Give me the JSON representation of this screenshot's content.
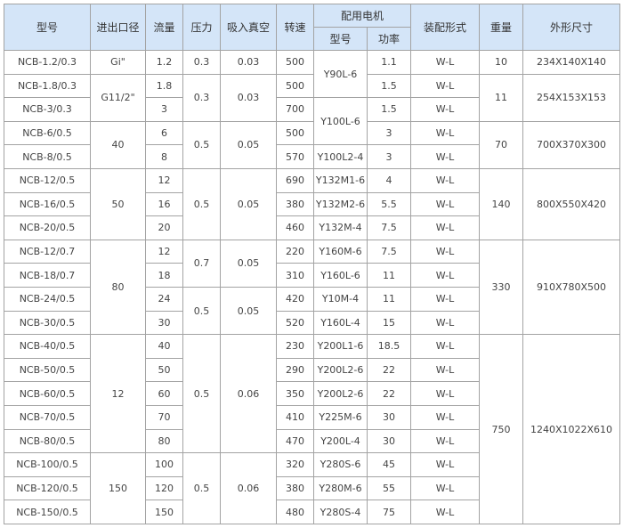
{
  "colors": {
    "header_bg": "#d4e5f8",
    "border": "#a3a3a3",
    "text": "#444444"
  },
  "header": {
    "model": "型号",
    "port": "进出口径",
    "flow": "流量",
    "pressure": "压力",
    "vacuum": "吸入真空",
    "speed": "转速",
    "motor": "配用电机",
    "motor_model": "型号",
    "motor_power": "功率",
    "assembly": "装配形式",
    "weight": "重量",
    "dimensions": "外形尺寸"
  },
  "rows": [
    [
      {
        "t": "NCB-1.2/0.3"
      },
      {
        "t": "Gi\""
      },
      {
        "t": "1.2"
      },
      {
        "t": "0.3"
      },
      {
        "t": "0.03"
      },
      {
        "t": "500"
      },
      {
        "t": "Y90L-6",
        "rs": 2
      },
      {
        "t": "1.1"
      },
      {
        "t": "W-L"
      },
      {
        "t": "10"
      },
      {
        "t": "234X140X140"
      }
    ],
    [
      {
        "t": "NCB-1.8/0.3"
      },
      {
        "t": "G11/2\"",
        "rs": 2
      },
      {
        "t": "1.8"
      },
      {
        "t": "0.3",
        "rs": 2
      },
      {
        "t": "0.03",
        "rs": 2
      },
      {
        "t": "500"
      },
      {
        "t": "1.5"
      },
      {
        "t": "W-L"
      },
      {
        "t": "11",
        "rs": 2
      },
      {
        "t": "254X153X153",
        "rs": 2
      }
    ],
    [
      {
        "t": "NCB-3/0.3"
      },
      {
        "t": "3"
      },
      {
        "t": "700"
      },
      {
        "t": "Y100L-6",
        "rs": 2
      },
      {
        "t": "1.5"
      },
      {
        "t": "W-L"
      }
    ],
    [
      {
        "t": "NCB-6/0.5"
      },
      {
        "t": "40",
        "rs": 2
      },
      {
        "t": "6"
      },
      {
        "t": "0.5",
        "rs": 2
      },
      {
        "t": "0.05",
        "rs": 2
      },
      {
        "t": "500"
      },
      {
        "t": "3"
      },
      {
        "t": "W-L"
      },
      {
        "t": "70",
        "rs": 2
      },
      {
        "t": "700X370X300",
        "rs": 2
      }
    ],
    [
      {
        "t": "NCB-8/0.5"
      },
      {
        "t": "8"
      },
      {
        "t": "570"
      },
      {
        "t": "Y100L2-4"
      },
      {
        "t": "3"
      },
      {
        "t": "W-L"
      }
    ],
    [
      {
        "t": "NCB-12/0.5"
      },
      {
        "t": "50",
        "rs": 3
      },
      {
        "t": "12"
      },
      {
        "t": "0.5",
        "rs": 3
      },
      {
        "t": "0.05",
        "rs": 3
      },
      {
        "t": "690"
      },
      {
        "t": "Y132M1-6"
      },
      {
        "t": "4"
      },
      {
        "t": "W-L"
      },
      {
        "t": "140",
        "rs": 3
      },
      {
        "t": "800X550X420",
        "rs": 3
      }
    ],
    [
      {
        "t": "NCB-16/0.5"
      },
      {
        "t": "16"
      },
      {
        "t": "380"
      },
      {
        "t": "Y132M2-6"
      },
      {
        "t": "5.5"
      },
      {
        "t": "W-L"
      }
    ],
    [
      {
        "t": "NCB-20/0.5"
      },
      {
        "t": "20"
      },
      {
        "t": "460"
      },
      {
        "t": "Y132M-4"
      },
      {
        "t": "7.5"
      },
      {
        "t": "W-L"
      }
    ],
    [
      {
        "t": "NCB-12/0.7"
      },
      {
        "t": "80",
        "rs": 4
      },
      {
        "t": "12"
      },
      {
        "t": "0.7",
        "rs": 2
      },
      {
        "t": "0.05",
        "rs": 2
      },
      {
        "t": "220"
      },
      {
        "t": "Y160M-6"
      },
      {
        "t": "7.5"
      },
      {
        "t": "W-L"
      },
      {
        "t": "330",
        "rs": 4
      },
      {
        "t": "910X780X500",
        "rs": 4
      }
    ],
    [
      {
        "t": "NCB-18/0.7"
      },
      {
        "t": "18"
      },
      {
        "t": "310"
      },
      {
        "t": "Y160L-6"
      },
      {
        "t": "11"
      },
      {
        "t": "W-L"
      }
    ],
    [
      {
        "t": "NCB-24/0.5"
      },
      {
        "t": "24"
      },
      {
        "t": "0.5",
        "rs": 2
      },
      {
        "t": "0.05",
        "rs": 2
      },
      {
        "t": "420"
      },
      {
        "t": "Y10M-4"
      },
      {
        "t": "11"
      },
      {
        "t": "W-L"
      }
    ],
    [
      {
        "t": "NCB-30/0.5"
      },
      {
        "t": "30"
      },
      {
        "t": "520"
      },
      {
        "t": "Y160L-4"
      },
      {
        "t": "15"
      },
      {
        "t": "W-L"
      }
    ],
    [
      {
        "t": "NCB-40/0.5"
      },
      {
        "t": "12",
        "rs": 5
      },
      {
        "t": "40"
      },
      {
        "t": "0.5",
        "rs": 5
      },
      {
        "t": "0.06",
        "rs": 5
      },
      {
        "t": "230"
      },
      {
        "t": "Y200L1-6"
      },
      {
        "t": "18.5"
      },
      {
        "t": "W-L"
      },
      {
        "t": "750",
        "rs": 8
      },
      {
        "t": "1240X1022X610",
        "rs": 8
      }
    ],
    [
      {
        "t": "NCB-50/0.5"
      },
      {
        "t": "50"
      },
      {
        "t": "290"
      },
      {
        "t": "Y200L2-6"
      },
      {
        "t": "22"
      },
      {
        "t": "W-L"
      }
    ],
    [
      {
        "t": "NCB-60/0.5"
      },
      {
        "t": "60"
      },
      {
        "t": "350"
      },
      {
        "t": "Y200L2-6"
      },
      {
        "t": "22"
      },
      {
        "t": "W-L"
      }
    ],
    [
      {
        "t": "NCB-70/0.5"
      },
      {
        "t": "70"
      },
      {
        "t": "410"
      },
      {
        "t": "Y225M-6"
      },
      {
        "t": "30"
      },
      {
        "t": "W-L"
      }
    ],
    [
      {
        "t": "NCB-80/0.5"
      },
      {
        "t": "80"
      },
      {
        "t": "470"
      },
      {
        "t": "Y200L-4"
      },
      {
        "t": "30"
      },
      {
        "t": "W-L"
      }
    ],
    [
      {
        "t": "NCB-100/0.5"
      },
      {
        "t": "150",
        "rs": 3
      },
      {
        "t": "100"
      },
      {
        "t": "0.5",
        "rs": 3
      },
      {
        "t": "0.06",
        "rs": 3
      },
      {
        "t": "320"
      },
      {
        "t": "Y280S-6"
      },
      {
        "t": "45"
      },
      {
        "t": "W-L"
      }
    ],
    [
      {
        "t": "NCB-120/0.5"
      },
      {
        "t": "120"
      },
      {
        "t": "380"
      },
      {
        "t": "Y280M-6"
      },
      {
        "t": "55"
      },
      {
        "t": "W-L"
      }
    ],
    [
      {
        "t": "NCB-150/0.5"
      },
      {
        "t": "150"
      },
      {
        "t": "480"
      },
      {
        "t": "Y280S-4"
      },
      {
        "t": "75"
      },
      {
        "t": "W-L"
      }
    ]
  ]
}
